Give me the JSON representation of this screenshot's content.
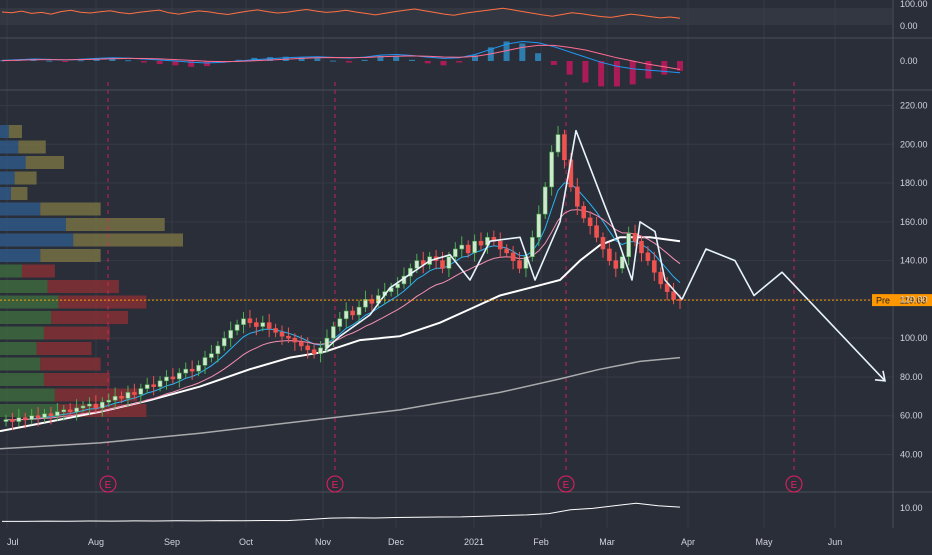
{
  "colors": {
    "background": "#2a2e39",
    "grid": "#363a45",
    "axis_text": "#d1d4dc",
    "candle_up": "#4caf50",
    "candle_down": "#ef5350",
    "pattern_line": "#e8f4fb",
    "ema_fast": "#29b6f6",
    "ema_slow": "#f48fb1",
    "sma_50": "#ffffff",
    "sma_200": "#c9c9c9",
    "earnings": "#e91e63",
    "price_line": "#ff9800",
    "rsi_line": "#ff7043",
    "macd_line": "#2196f3",
    "signal_line": "#ff6d92",
    "vp_up": "#3d6b3d",
    "vp_down": "#8a2f34",
    "vp_up_value_area": "#2f5a8a",
    "vp_down_value_area": "#7a7444"
  },
  "chart_data": [
    {
      "type": "line",
      "panel": "rsi",
      "y_ticks": [
        "100.00",
        "0.00"
      ],
      "ylim": [
        0,
        100
      ],
      "series": [
        {
          "values": [
            62,
            58,
            66,
            55,
            60,
            52,
            64,
            70,
            61,
            57,
            63,
            68,
            59,
            54,
            61,
            66,
            71,
            58,
            52,
            60,
            67,
            63,
            55,
            50,
            58,
            66,
            72,
            64,
            57,
            61,
            68,
            74,
            66,
            60,
            64,
            70,
            62,
            55,
            48,
            56,
            64,
            70,
            76,
            68,
            60,
            52,
            46,
            55,
            62,
            68,
            74,
            80,
            72,
            64,
            56,
            48,
            42,
            50,
            58,
            54,
            46,
            40,
            36,
            44,
            52,
            46,
            40,
            34,
            38,
            32
          ]
        }
      ]
    },
    {
      "type": "line",
      "panel": "macd",
      "y_ticks": [
        "0.00"
      ],
      "ylim": [
        -12,
        18
      ],
      "series": [
        {
          "name": "MACD",
          "values": [
            0.5,
            1,
            1.5,
            1.2,
            0.8,
            1.3,
            2,
            2.5,
            2.2,
            1.5,
            0.8,
            0,
            -1,
            -1.5,
            -1,
            0,
            1,
            1.8,
            2.5,
            3,
            3.2,
            2.8,
            2.2,
            3,
            4.5,
            5,
            4.2,
            3,
            2,
            2.5,
            5,
            9,
            13,
            15,
            14,
            11,
            7,
            3,
            -1,
            -4,
            -6,
            -7,
            -8,
            -9
          ]
        },
        {
          "name": "Signal",
          "values": [
            0.3,
            0.6,
            1,
            1.1,
            1,
            1.1,
            1.4,
            1.8,
            2,
            1.9,
            1.6,
            1.1,
            0.5,
            -0.2,
            -0.5,
            -0.3,
            0.2,
            0.8,
            1.4,
            2,
            2.5,
            2.7,
            2.6,
            2.7,
            3.2,
            3.7,
            3.9,
            3.6,
            3.1,
            2.9,
            3.5,
            5.5,
            8,
            10.5,
            12,
            12,
            10.5,
            8.5,
            5.5,
            2.5,
            0,
            -2.5,
            -4.5,
            -6.5
          ]
        }
      ]
    },
    {
      "type": "line",
      "panel": "price",
      "y_ticks": [
        "220.00",
        "200.00",
        "180.00",
        "160.00",
        "140.00",
        "120.00",
        "100.00",
        "80.00",
        "60.00",
        "40.00"
      ],
      "ylim": [
        32,
        228
      ],
      "x_ticks": [
        "Jul",
        "Aug",
        "Sep",
        "Oct",
        "Nov",
        "Dec",
        "2021",
        "Feb",
        "Mar",
        "Apr",
        "May",
        "Jun"
      ],
      "candle_closes": [
        58,
        57,
        59,
        58,
        60,
        59,
        61,
        60,
        62,
        63,
        62,
        64,
        65,
        66,
        64,
        67,
        68,
        70,
        69,
        72,
        71,
        74,
        76,
        75,
        78,
        80,
        79,
        82,
        84,
        83,
        86,
        90,
        92,
        96,
        100,
        104,
        107,
        110,
        108,
        106,
        108,
        105,
        103,
        101,
        100,
        98,
        96,
        94,
        92,
        95,
        100,
        106,
        110,
        114,
        112,
        116,
        120,
        118,
        122,
        124,
        126,
        128,
        132,
        136,
        140,
        138,
        142,
        140,
        136,
        142,
        146,
        148,
        144,
        150,
        148,
        152,
        150,
        146,
        144,
        140,
        136,
        142,
        152,
        164,
        178,
        196,
        205,
        192,
        178,
        168,
        162,
        158,
        152,
        146,
        140,
        136,
        142,
        154,
        150,
        144,
        140,
        134,
        128,
        124,
        120,
        119.63
      ],
      "pattern_lines": [
        {
          "name": "Trend and head-and-shoulders",
          "values": [
            [
              325,
              94
            ],
            [
              340,
              101
            ],
            [
              370,
              112
            ],
            [
              390,
              126
            ],
            [
              410,
              133
            ],
            [
              430,
              140
            ],
            [
              450,
              143
            ],
            [
              470,
              130
            ],
            [
              490,
              150
            ],
            [
              520,
              152
            ],
            [
              535,
              130
            ],
            [
              560,
              160
            ],
            [
              576,
              207
            ],
            [
              605,
              168
            ],
            [
              615,
              155
            ],
            [
              632,
              130
            ],
            [
              640,
              160
            ],
            [
              655,
              155
            ],
            [
              665,
              130
            ],
            [
              682,
              120
            ]
          ]
        },
        {
          "name": "Projection",
          "values": [
            [
              682,
              120
            ],
            [
              706,
              146
            ],
            [
              735,
              140
            ],
            [
              754,
              122
            ],
            [
              782,
              134
            ],
            [
              885,
              78
            ]
          ]
        }
      ],
      "moving_averages": [
        {
          "name": "SMA 50",
          "values": [
            [
              0,
              52
            ],
            [
              40,
              56
            ],
            [
              100,
              62
            ],
            [
              150,
              68
            ],
            [
              200,
              75
            ],
            [
              250,
              84
            ],
            [
              290,
              90
            ],
            [
              325,
              93
            ],
            [
              360,
              99
            ],
            [
              400,
              101
            ],
            [
              440,
              108
            ],
            [
              470,
              115
            ],
            [
              500,
              122
            ],
            [
              530,
              126
            ],
            [
              560,
              130
            ],
            [
              580,
              140
            ],
            [
              600,
              148
            ],
            [
              620,
              152
            ],
            [
              650,
              152
            ],
            [
              680,
              150
            ]
          ]
        },
        {
          "name": "SMA 200",
          "values": [
            [
              0,
              43
            ],
            [
              100,
              46
            ],
            [
              200,
              51
            ],
            [
              300,
              57
            ],
            [
              400,
              63
            ],
            [
              500,
              72
            ],
            [
              560,
              79
            ],
            [
              600,
              84
            ],
            [
              640,
              88
            ],
            [
              680,
              90
            ]
          ]
        }
      ],
      "last_price": {
        "label": "Pre",
        "value": "119.63"
      },
      "earnings_markers": [
        {
          "label": "E",
          "x_px_ref": "Aug"
        },
        {
          "label": "E",
          "x_px_ref": "Nov"
        },
        {
          "label": "E",
          "x_px_ref": "Feb"
        },
        {
          "label": "E",
          "x_px_ref": "May"
        }
      ]
    },
    {
      "type": "line",
      "panel": "volume_line",
      "y_ticks": [
        "10.00"
      ],
      "series": [
        {
          "values": [
            2,
            2,
            2.2,
            2.1,
            2.3,
            2.2,
            2.4,
            2.3,
            2.5,
            2.4,
            2.6,
            2.5,
            2.7,
            2.6,
            3.5,
            4.5,
            4.8,
            4.6,
            5,
            5.2,
            5.4,
            5.5,
            6,
            6.5,
            7,
            8,
            11,
            12,
            14,
            16,
            14,
            13
          ]
        }
      ]
    }
  ]
}
